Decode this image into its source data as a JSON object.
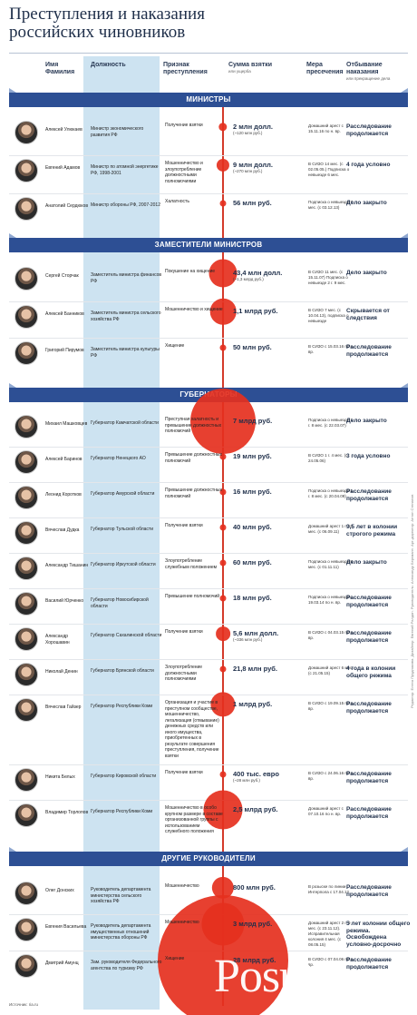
{
  "title_lines": [
    "Преступления и наказания",
    "российских чиновников"
  ],
  "headers": {
    "name": "Имя Фамилия",
    "position": "Должность",
    "crime": "Признак преступления",
    "sum": "Сумма взятки",
    "sum_sub": "или ущерба",
    "measure": "Мера пресечения",
    "serving": "Отбывание наказания",
    "serving_sub": "или прекращение дела"
  },
  "source": "Источник: ria.ru",
  "credits": "Редактор: Елена Прудникова. Дизайнер: Евгений Ралдин. Руководитель: Александр Бергманн. Арт-директор: Антон Степанов",
  "watermark": "Posuta.ru",
  "colors": {
    "band": "#2d4f94",
    "bubble": "#e5301e",
    "position_column": "#cde3f1",
    "accent_text": "#1f2f4a"
  },
  "chart_data": {
    "type": "table",
    "title": "Преступления и наказания российских чиновников",
    "encoding": "bubble area proportional to bribe/damage amount",
    "groups": [
      {
        "label": "МИНИСТРЫ",
        "people": [
          {
            "name": "Алексей Улюкаев",
            "position": "Министр экономического развития РФ",
            "crime": "Получение взятки",
            "sum": "2 млн долл.",
            "sum_alt": "(~120 млн руб.)",
            "sum_rub_mln": 120,
            "measure": "Домашний арест с 15.11.16 по н. вр.",
            "serving": "Расследование продолжается",
            "icon": "portrait"
          },
          {
            "name": "Евгений Адамов",
            "position": "Министр по атомной энергетике РФ, 1998-2001",
            "crime": "Мошенничество и злоупотребление должностными полномочиями",
            "sum": "9 млн долл.",
            "sum_alt": "(~270 млн руб.)",
            "sum_rub_mln": 270,
            "measure": "В СИЗО 14 мес. (с 02.05.05.) Подписка о невыезде 6 мес.",
            "serving": "4 года условно",
            "icon": "portrait"
          },
          {
            "name": "Анатолий Сердюков",
            "position": "Министр обороны РФ, 2007-2012",
            "crime": "Халатность",
            "sum": "56 млн руб.",
            "sum_alt": "",
            "sum_rub_mln": 56,
            "measure": "Подписка о невыезде 7 мес. (с 03.12.13)",
            "serving": "Дело закрыто",
            "icon": "portrait"
          }
        ]
      },
      {
        "label": "ЗАМЕСТИТЕЛИ МИНИСТРОВ",
        "people": [
          {
            "name": "Сергей Сторчак",
            "position": "Заместитель министра финансов РФ",
            "crime": "Покушение на хищение",
            "sum": "43,4 млн долл.",
            "sum_alt": "(~1,3 млрд руб.)",
            "sum_rub_mln": 1300,
            "measure": "В СИЗО 11 мес. (с 15.11.07) Подписка о невыезде 2 г. 9 мес.",
            "serving": "Дело закрыто",
            "icon": "portrait"
          },
          {
            "name": "Алексей Банников",
            "position": "Заместитель министра сельского хозяйства РФ",
            "crime": "Мошенничество и хищение",
            "sum": "1,1 млрд руб.",
            "sum_alt": "",
            "sum_rub_mln": 1100,
            "measure": "В СИЗО 7 мес. (с 10.04.13), подписка о невыезде",
            "serving": "Скрывается от следствия",
            "icon": "portrait"
          },
          {
            "name": "Григорий Пирумов",
            "position": "Заместитель министра культуры РФ",
            "crime": "Хищение",
            "sum": "50 млн руб.",
            "sum_alt": "",
            "sum_rub_mln": 50,
            "measure": "В СИЗО с 15.03.16 по н. вр.",
            "serving": "Расследование продолжается",
            "icon": "portrait"
          }
        ]
      },
      {
        "label": "ГУБЕРНАТОРЫ",
        "people": [
          {
            "name": "Михаил Машковцев",
            "position": "Губернатор Камчатской области",
            "crime": "Преступная халатность и превышение должностных полномочий",
            "sum": "7 млрд руб.",
            "sum_alt": "",
            "sum_rub_mln": 7000,
            "measure": "Подписка о невыезде 1 г. 8 мес. (с 22.03.07)",
            "serving": "Дело закрыто",
            "icon": "portrait"
          },
          {
            "name": "Алексей Баринов",
            "position": "Губернатор Ненецкого АО",
            "crime": "Превышение должностных полномочий",
            "sum": "19 млн руб.",
            "sum_alt": "",
            "sum_rub_mln": 19,
            "measure": "В СИЗО 1 г. 4 мес. (с 24.05.06)",
            "serving": "3 года условно",
            "icon": "portrait"
          },
          {
            "name": "Леонид Коротков",
            "position": "Губернатор Амурской области",
            "crime": "Превышение должностных полномочий",
            "sum": "16 млн руб.",
            "sum_alt": "",
            "sum_rub_mln": 16,
            "measure": "Подписка о невыезде 1 г. 8 мес. (с 20.04.09)",
            "serving": "Расследование продолжается",
            "icon": "portrait"
          },
          {
            "name": "Вячеслав Дудка",
            "position": "Губернатор Тульской области",
            "crime": "Получение взятки",
            "sum": "40 млн руб.",
            "sum_alt": "",
            "sum_rub_mln": 40,
            "measure": "Домашний арест 1 г. 10 мес. (с 06.09.11)",
            "serving": "9,5 лет в колонии строгого режима",
            "icon": "portrait"
          },
          {
            "name": "Александр Тишанин",
            "position": "Губернатор Иркутской области",
            "crime": "Злоупотребление служебным положением",
            "sum": "60 млн руб.",
            "sum_alt": "",
            "sum_rub_mln": 60,
            "measure": "Подписка о невыезде 8 мес. (с 01.11.11)",
            "serving": "Дело закрыто",
            "icon": "portrait"
          },
          {
            "name": "Василий Юрченко",
            "position": "Губернатор Новосибирской области",
            "crime": "Превышение полномочий",
            "sum": "18 млн руб.",
            "sum_alt": "",
            "sum_rub_mln": 18,
            "measure": "Подписка о невыезде с 19.03.14 по н. вр.",
            "serving": "Расследование продолжается",
            "icon": "portrait"
          },
          {
            "name": "Александр Хорошавин",
            "position": "Губернатор Сахалинской области",
            "crime": "Получение взятки",
            "sum": "5,6 млн долл.",
            "sum_alt": "(~336 млн руб.)",
            "sum_rub_mln": 336,
            "measure": "В СИЗО с 04.03.15 по н. вр.",
            "serving": "Расследование продолжается",
            "icon": "portrait"
          },
          {
            "name": "Николай Денин",
            "position": "Губернатор Брянской области",
            "crime": "Злоупотребление должностными полномочиями",
            "sum": "21,8 млн руб.",
            "sum_alt": "",
            "sum_rub_mln": 21.8,
            "measure": "Домашний арест 6 мес. (с 21.05.15)",
            "serving": "4 года в колонии общего режима",
            "icon": "portrait"
          },
          {
            "name": "Вячеслав Гайзер",
            "position": "Губернатор Республики Коми",
            "crime": "Организация и участие в преступном сообществе, мошенничество, легализация (отмывание) денежных средств или иного имущества, приобретенных в результате совершения преступления, получение взятки",
            "sum": "1 млрд руб.",
            "sum_alt": "",
            "sum_rub_mln": 1000,
            "measure": "В СИЗО с 19.09.15 по н. вр.",
            "serving": "Расследование продолжается",
            "icon": "portrait"
          },
          {
            "name": "Никита Белых",
            "position": "Губернатор Кировской области",
            "crime": "Получение взятки",
            "sum": "400 тыс. евро",
            "sum_alt": "(~28 млн руб.)",
            "sum_rub_mln": 28,
            "measure": "В СИЗО с 24.06.16 по н. вр.",
            "serving": "Расследование продолжается",
            "icon": "portrait"
          },
          {
            "name": "Владимир Торлопов",
            "position": "Губернатор Республики Коми",
            "crime": "Мошенничество в особо крупном размере в составе организованной группы с использованием служебного положения",
            "sum": "2,5 млрд руб.",
            "sum_alt": "",
            "sum_rub_mln": 2500,
            "measure": "Домашний арест с 07.10.16 по н. вр.",
            "serving": "Расследование продолжается",
            "icon": "portrait"
          }
        ]
      },
      {
        "label": "ДРУГИЕ РУКОВОДИТЕЛИ",
        "people": [
          {
            "name": "Олег Донских",
            "position": "Руководитель департамента министерства сельского хозяйства РФ",
            "crime": "Мошенничество",
            "sum": "800 млн руб.",
            "sum_alt": "",
            "sum_rub_mln": 800,
            "measure": "В розыске по линии Интерпола с 17.04.12",
            "serving": "Расследование продолжается",
            "icon": "portrait"
          },
          {
            "name": "Евгения Васильева",
            "position": "Руководитель департамента имущественных отношений министерства обороны РФ",
            "crime": "Мошенничество",
            "sum": "3 млрд руб.",
            "sum_alt": "",
            "sum_rub_mln": 3000,
            "measure": "Домашний арест 2 г. 9 мес. (с 23.11.12). Исправительная колония 4 мес. (с 08.05.15)",
            "serving": "5 лет колонии общего режима. Освобождена условно-досрочно",
            "icon": "portrait"
          },
          {
            "name": "Дмитрий Амунц",
            "position": "Зам. руководителя Федерального агентства по туризму РФ",
            "crime": "Хищение",
            "sum": "28 млрд руб.",
            "sum_alt": "",
            "sum_rub_mln": 28000,
            "measure": "В СИЗО с 07.04.06 по н. вр.",
            "serving": "Расследование продолжается",
            "icon": "portrait"
          }
        ]
      }
    ]
  }
}
